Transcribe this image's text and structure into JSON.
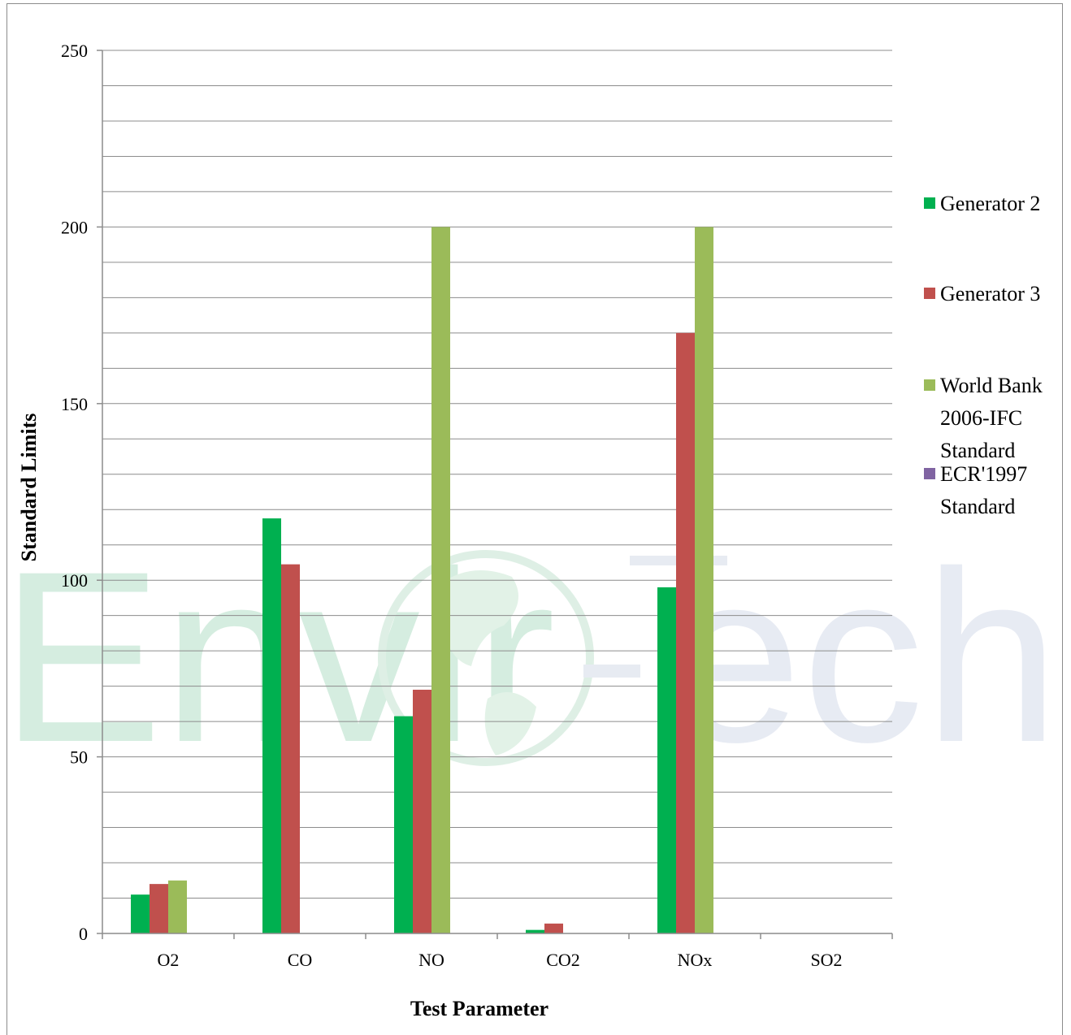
{
  "chart_data": {
    "type": "bar",
    "categories": [
      "O2",
      "CO",
      "NO",
      "CO2",
      "NOx",
      "SO2"
    ],
    "series": [
      {
        "name": "Generator 2",
        "color": "#00b050",
        "values": [
          11,
          117.5,
          61.5,
          1,
          98,
          0
        ]
      },
      {
        "name": "Generator 3",
        "color": "#c0504d",
        "values": [
          14,
          104.5,
          69,
          2.8,
          170,
          0
        ]
      },
      {
        "name": "World Bank 2006-IFC Standard",
        "color": "#9bbb59",
        "values": [
          15,
          0,
          200,
          0,
          200,
          0
        ]
      },
      {
        "name": "ECR'1997 Standard",
        "color": "#8064a2",
        "values": [
          0,
          0,
          0,
          0,
          0,
          0
        ]
      }
    ],
    "legend_lines": [
      [
        "Generator 2"
      ],
      [
        "Generator 3"
      ],
      [
        "World Bank",
        "2006-IFC",
        "Standard"
      ],
      [
        "ECR'1997",
        "Standard"
      ]
    ],
    "ylim": [
      0,
      250
    ],
    "yticks": [
      "0",
      "50",
      "100",
      "150",
      "200",
      "250"
    ],
    "xlabel": "Test Parameter",
    "ylabel": "Standard Limits",
    "grid": true,
    "legend_position": "right",
    "watermark": "Enviro-Tech"
  }
}
